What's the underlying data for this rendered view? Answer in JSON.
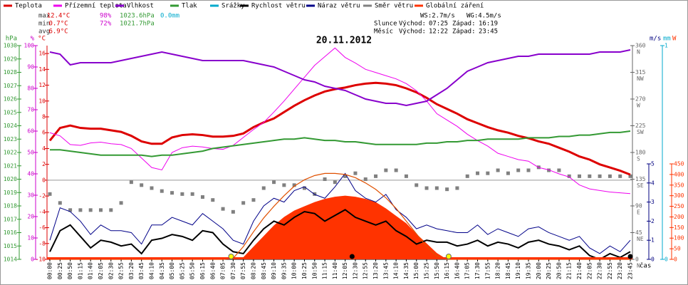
{
  "chart_data": {
    "type": "line",
    "title": "20.11.2012",
    "x_label": "čas",
    "stats": [
      {
        "label": "max",
        "temp": "12.4°C",
        "hum": "98%",
        "press": "1023.6hPa",
        "rain": "0.0mm"
      },
      {
        "label": "min",
        "temp": "0.7°C",
        "hum": "72%",
        "press": "1021.7hPa"
      },
      {
        "label": "avg",
        "temp": "6.9°C"
      }
    ],
    "wind_text": "WS:2.7m/s",
    "gust_text": "WG:4.5m/s",
    "sun": {
      "label": "Slunce",
      "rise_label": "Východ:",
      "rise": "07:25",
      "set_label": "Západ:",
      "set": "16:19"
    },
    "moon": {
      "label": "Měsíc",
      "rise_label": "Východ:",
      "rise": "12:22",
      "set_label": "Západ:",
      "set": "23:45"
    },
    "categories": [
      "00:00",
      "00:25",
      "00:50",
      "01:15",
      "01:40",
      "02:05",
      "02:30",
      "02:55",
      "03:20",
      "03:45",
      "04:10",
      "04:35",
      "05:00",
      "05:25",
      "05:50",
      "06:15",
      "06:40",
      "07:05",
      "07:30",
      "07:55",
      "08:20",
      "08:45",
      "09:10",
      "09:35",
      "10:00",
      "10:25",
      "10:50",
      "11:15",
      "11:40",
      "12:05",
      "12:30",
      "12:55",
      "13:20",
      "13:45",
      "14:10",
      "14:35",
      "15:00",
      "15:25",
      "15:50",
      "16:15",
      "16:40",
      "17:05",
      "17:30",
      "17:55",
      "18:20",
      "18:45",
      "19:10",
      "19:35",
      "20:00",
      "20:25",
      "20:50",
      "21:15",
      "21:40",
      "22:05",
      "22:30",
      "22:55",
      "23:20",
      "23:45"
    ],
    "axes": {
      "hpa": {
        "label": "hPa",
        "color": "#339933",
        "ylim": [
          1014,
          1030
        ],
        "yticks": [
          1014,
          1015,
          1016,
          1017,
          1018,
          1019,
          1020,
          1021,
          1022,
          1023,
          1024,
          1025,
          1026,
          1027,
          1028,
          1029,
          1030
        ]
      },
      "pct": {
        "label": "%",
        "color": "#cc00cc",
        "ylim": [
          0,
          100
        ],
        "yticks": [
          0,
          10,
          20,
          30,
          40,
          50,
          60,
          70,
          80,
          90,
          100
        ]
      },
      "temp": {
        "label": "°C",
        "color": "#dd0000",
        "ylim": [
          -10,
          17
        ],
        "yticks": [
          -10,
          -8,
          -6,
          -4,
          -2,
          0,
          2,
          4,
          6,
          8,
          10,
          12,
          14,
          16
        ]
      },
      "dir": {
        "label": "",
        "color": "#666666",
        "ylim": [
          0,
          360
        ],
        "yticks": [
          0,
          45,
          90,
          135,
          180,
          225,
          270,
          315,
          360
        ],
        "compass": [
          "N",
          "NE",
          "E",
          "SE",
          "S",
          "SW",
          "W",
          "NW",
          "N"
        ]
      },
      "ms": {
        "label": "m/s",
        "color": "#000080",
        "ylim": [
          0,
          5
        ],
        "yticks": [
          0,
          1,
          2,
          3,
          4,
          5
        ]
      },
      "mm": {
        "label": "mm",
        "color": "#00aacc",
        "ylim": [
          0,
          1
        ],
        "yticks": [
          0,
          1
        ]
      },
      "w": {
        "label": "W",
        "color": "#ff3300",
        "ylim": [
          0,
          450
        ],
        "yticks": [
          0,
          50,
          100,
          150,
          200,
          250,
          300,
          350,
          400,
          450
        ]
      }
    },
    "series": [
      {
        "name": "Teplota",
        "color": "#dd0000",
        "axis": "temp",
        "style": "line",
        "width": 3,
        "values": [
          5.0,
          6.6,
          6.9,
          6.6,
          6.5,
          6.5,
          6.3,
          6.1,
          5.6,
          4.9,
          4.6,
          4.6,
          5.4,
          5.7,
          5.8,
          5.7,
          5.5,
          5.5,
          5.6,
          5.9,
          6.7,
          7.3,
          7.8,
          8.6,
          9.4,
          10.1,
          10.7,
          11.2,
          11.5,
          11.7,
          12.0,
          12.2,
          12.3,
          12.2,
          12.0,
          11.6,
          11.1,
          10.4,
          9.6,
          9.0,
          8.4,
          7.7,
          7.2,
          6.7,
          6.3,
          6.0,
          5.6,
          5.3,
          4.9,
          4.6,
          4.1,
          3.6,
          3.0,
          2.6,
          2.0,
          1.6,
          1.2,
          0.7
        ]
      },
      {
        "name": "Přízemní teplota",
        "color": "#ee00ee",
        "axis": "temp",
        "style": "line",
        "width": 1,
        "values": [
          6.0,
          5.6,
          4.5,
          4.4,
          4.7,
          4.8,
          4.6,
          4.5,
          4.0,
          2.8,
          1.6,
          1.3,
          3.5,
          4.1,
          4.3,
          4.2,
          4.0,
          3.9,
          4.4,
          5.4,
          6.4,
          7.3,
          8.6,
          10.0,
          11.5,
          13.0,
          14.5,
          15.6,
          16.7,
          15.5,
          14.8,
          14.0,
          13.6,
          13.2,
          12.8,
          12.2,
          11.3,
          10.0,
          8.4,
          7.6,
          6.8,
          5.8,
          5.0,
          4.3,
          3.4,
          3.0,
          2.6,
          2.4,
          1.6,
          1.3,
          0.8,
          0.4,
          -0.6,
          -1.1,
          -1.3,
          -1.5,
          -1.6,
          -1.7
        ]
      },
      {
        "name": "Vlhkost",
        "color": "#8800cc",
        "axis": "pct",
        "style": "line",
        "width": 2,
        "values": [
          97,
          96,
          91,
          92,
          92,
          92,
          92,
          93,
          94,
          95,
          96,
          97,
          96,
          95,
          94,
          93,
          93,
          93,
          93,
          93,
          92,
          91,
          90,
          88,
          86,
          84,
          83,
          81,
          80,
          79,
          77,
          75,
          74,
          73,
          73,
          72,
          73,
          74,
          77,
          80,
          84,
          88,
          90,
          92,
          93,
          94,
          95,
          95,
          96,
          96,
          96,
          96,
          96,
          96,
          97,
          97,
          97,
          98
        ]
      },
      {
        "name": "Tlak",
        "color": "#339933",
        "axis": "hpa",
        "style": "line",
        "width": 2,
        "values": [
          1022.2,
          1022.2,
          1022.1,
          1022.0,
          1021.9,
          1021.8,
          1021.8,
          1021.8,
          1021.8,
          1021.8,
          1021.7,
          1021.8,
          1021.8,
          1021.9,
          1022.0,
          1022.1,
          1022.3,
          1022.4,
          1022.5,
          1022.6,
          1022.7,
          1022.8,
          1022.9,
          1023.0,
          1023.0,
          1023.1,
          1023.0,
          1022.9,
          1022.9,
          1022.8,
          1022.8,
          1022.7,
          1022.6,
          1022.6,
          1022.6,
          1022.6,
          1022.6,
          1022.7,
          1022.7,
          1022.8,
          1022.8,
          1022.9,
          1022.9,
          1023.0,
          1023.0,
          1023.0,
          1023.0,
          1023.1,
          1023.1,
          1023.1,
          1023.2,
          1023.2,
          1023.3,
          1023.3,
          1023.4,
          1023.5,
          1023.5,
          1023.6
        ]
      },
      {
        "name": "Srážky",
        "color": "#00aacc",
        "axis": "mm",
        "style": "none"
      },
      {
        "name": "Rychlost větru",
        "color": "#000000",
        "axis": "ms",
        "style": "line",
        "width": 2,
        "values": [
          0.4,
          1.5,
          1.8,
          1.2,
          0.6,
          1.0,
          0.9,
          0.7,
          0.8,
          0.3,
          1.0,
          1.1,
          1.3,
          1.2,
          1.0,
          1.5,
          1.4,
          0.8,
          0.4,
          0.3,
          1.0,
          1.6,
          2.0,
          1.8,
          2.2,
          2.5,
          2.4,
          2.0,
          2.3,
          2.6,
          2.2,
          2.0,
          1.8,
          2.0,
          1.5,
          1.2,
          0.8,
          1.0,
          0.9,
          0.9,
          0.7,
          0.8,
          1.0,
          0.7,
          0.9,
          0.8,
          0.6,
          0.9,
          1.0,
          0.8,
          0.7,
          0.5,
          0.7,
          0.2,
          0.0,
          0.3,
          0.1,
          0.4
        ]
      },
      {
        "name": "Náraz větru",
        "color": "#000088",
        "axis": "ms",
        "style": "line",
        "width": 1,
        "values": [
          1.0,
          2.7,
          2.5,
          2.0,
          1.3,
          1.8,
          1.5,
          1.5,
          1.4,
          0.8,
          1.8,
          1.8,
          2.2,
          2.0,
          1.8,
          2.4,
          2.0,
          1.6,
          1.0,
          0.8,
          2.0,
          2.8,
          3.2,
          3.0,
          3.6,
          3.8,
          3.4,
          3.2,
          3.8,
          4.5,
          3.6,
          3.2,
          3.0,
          3.4,
          2.6,
          2.2,
          1.6,
          1.8,
          1.6,
          1.5,
          1.4,
          1.4,
          1.8,
          1.3,
          1.6,
          1.4,
          1.2,
          1.6,
          1.7,
          1.4,
          1.2,
          1.0,
          1.2,
          0.6,
          0.3,
          0.7,
          0.4,
          1.0
        ]
      },
      {
        "name": "Směr větru",
        "color": "#808080",
        "axis": "dir",
        "style": "points",
        "values": [
          110,
          95,
          83,
          83,
          83,
          83,
          83,
          95,
          130,
          125,
          120,
          115,
          112,
          110,
          110,
          105,
          100,
          85,
          80,
          95,
          100,
          120,
          130,
          125,
          125,
          120,
          110,
          135,
          130,
          140,
          145,
          135,
          140,
          150,
          150,
          140,
          125,
          120,
          120,
          118,
          120,
          140,
          145,
          145,
          150,
          145,
          150,
          150,
          155,
          150,
          150,
          140,
          140,
          140,
          140,
          140,
          140,
          140
        ]
      },
      {
        "name": "Globální záření",
        "color": "#ff3300",
        "axis": "w",
        "style": "area",
        "values": [
          0,
          0,
          0,
          0,
          0,
          0,
          0,
          0,
          0,
          0,
          0,
          0,
          0,
          0,
          0,
          0,
          0,
          0,
          0,
          10,
          60,
          110,
          160,
          200,
          230,
          250,
          270,
          285,
          295,
          300,
          295,
          285,
          270,
          240,
          205,
          170,
          120,
          75,
          30,
          0,
          0,
          0,
          0,
          0,
          0,
          0,
          0,
          0,
          0,
          0,
          0,
          0,
          0,
          0,
          0,
          0,
          0,
          0
        ]
      }
    ],
    "clear_sky": {
      "color": "#e05000",
      "axis": "w",
      "values": [
        0,
        0,
        0,
        0,
        0,
        0,
        0,
        0,
        0,
        0,
        0,
        0,
        0,
        0,
        0,
        0,
        0,
        0,
        5,
        60,
        130,
        195,
        250,
        300,
        345,
        375,
        395,
        405,
        405,
        400,
        385,
        360,
        330,
        290,
        240,
        180,
        120,
        60,
        15,
        0,
        0,
        0,
        0,
        0,
        0,
        0,
        0,
        0,
        0,
        0,
        0,
        0,
        0,
        0,
        0,
        0,
        0,
        0
      ]
    },
    "sun_color": "#ffff00",
    "moon_color": "#000000"
  }
}
